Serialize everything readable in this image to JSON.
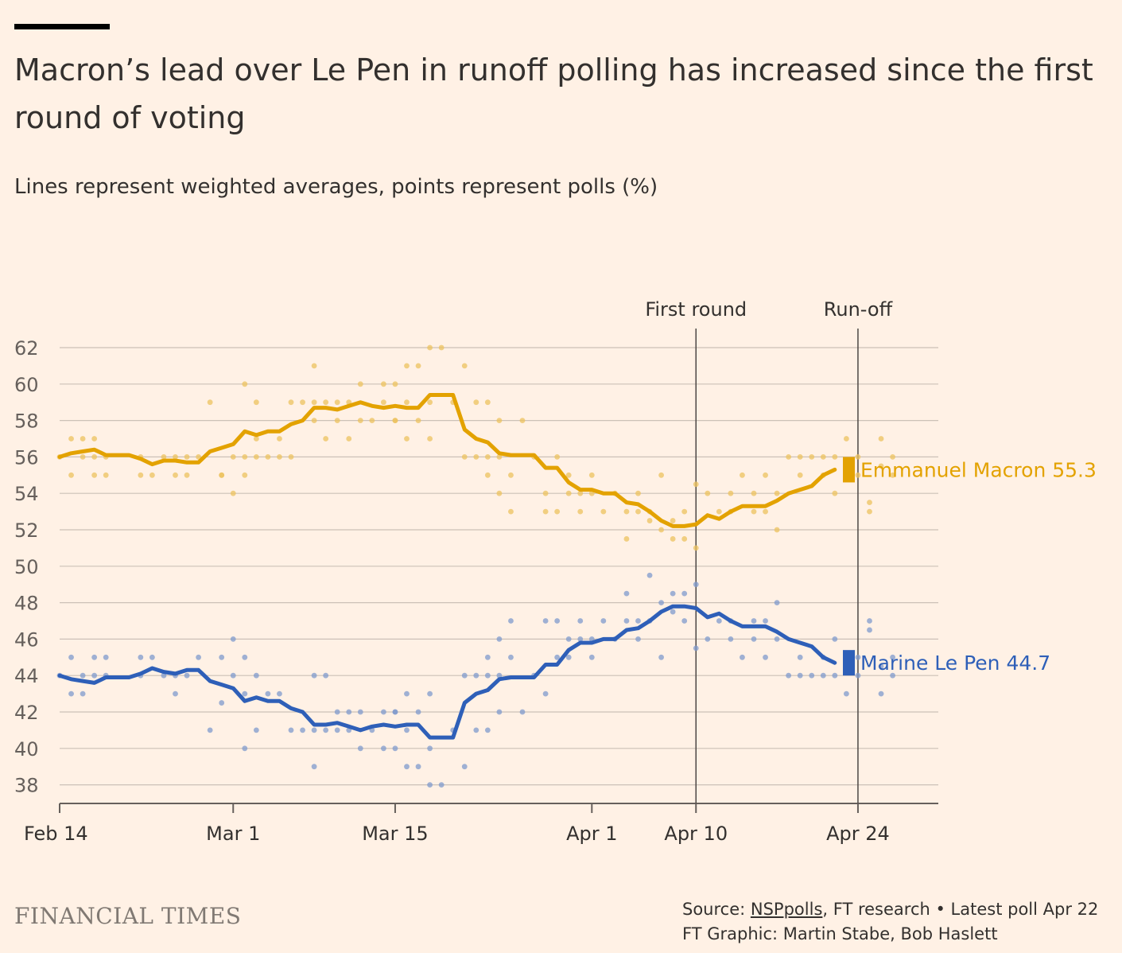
{
  "title": "Macron’s lead over Le Pen in runoff polling has increased since the first round of voting",
  "subtitle": "Lines represent weighted averages, points represent polls (%)",
  "footer": {
    "brand": "FINANCIAL TIMES",
    "source_prefix": "Source: ",
    "source_link": "NSPpolls",
    "source_suffix": ", FT research • Latest poll Apr 22",
    "credit": "FT Graphic: Martin Stabe, Bob Haslett"
  },
  "chart_data": {
    "type": "line",
    "xlabel": "",
    "ylabel": "",
    "x_unit": "days since Feb 14",
    "xlim": [
      0,
      73
    ],
    "ylim": [
      37,
      63
    ],
    "yticks": [
      38,
      40,
      42,
      44,
      46,
      48,
      50,
      52,
      54,
      56,
      58,
      60,
      62
    ],
    "xticks": [
      {
        "day": 0,
        "label": "Feb 14"
      },
      {
        "day": 15,
        "label": "Mar 1"
      },
      {
        "day": 29,
        "label": "Mar 15"
      },
      {
        "day": 46,
        "label": "Apr 1"
      },
      {
        "day": 55,
        "label": "Apr 10"
      },
      {
        "day": 69,
        "label": "Apr 24"
      }
    ],
    "annotations": [
      {
        "day": 55,
        "label": "First round"
      },
      {
        "day": 69,
        "label": "Run-off"
      }
    ],
    "series": [
      {
        "name": "Emmanuel Macron",
        "label": "Emmanuel Macron 55.3",
        "latest": 55.3,
        "color": "#e3a200",
        "x": [
          0,
          1,
          2,
          3,
          4,
          5,
          6,
          7,
          8,
          9,
          10,
          11,
          12,
          13,
          14,
          15,
          16,
          17,
          18,
          19,
          20,
          21,
          22,
          23,
          24,
          25,
          26,
          27,
          28,
          29,
          30,
          31,
          32,
          33,
          34,
          35,
          36,
          37,
          38,
          39,
          40,
          41,
          42,
          43,
          44,
          45,
          46,
          47,
          48,
          49,
          50,
          51,
          52,
          53,
          54,
          55,
          56,
          57,
          58,
          59,
          60,
          61,
          62,
          63,
          64,
          65,
          66,
          67
        ],
        "values": [
          56.0,
          56.2,
          56.3,
          56.4,
          56.1,
          56.1,
          56.1,
          55.9,
          55.6,
          55.8,
          55.8,
          55.7,
          55.7,
          56.3,
          56.5,
          56.7,
          57.4,
          57.2,
          57.4,
          57.4,
          57.8,
          58.0,
          58.7,
          58.7,
          58.6,
          58.8,
          59.0,
          58.8,
          58.7,
          58.8,
          58.7,
          58.7,
          59.4,
          59.4,
          59.4,
          57.5,
          57.0,
          56.8,
          56.2,
          56.1,
          56.1,
          56.1,
          55.4,
          55.4,
          54.6,
          54.2,
          54.2,
          54.0,
          54.0,
          53.5,
          53.4,
          53.0,
          52.5,
          52.2,
          52.2,
          52.3,
          52.8,
          52.6,
          53.0,
          53.3,
          53.3,
          53.3,
          53.6,
          54.0,
          54.2,
          54.4,
          55.0,
          55.3
        ]
      },
      {
        "name": "Marine Le Pen",
        "label": "Marine Le Pen 44.7",
        "latest": 44.7,
        "color": "#2e5fb8",
        "x": [
          0,
          1,
          2,
          3,
          4,
          5,
          6,
          7,
          8,
          9,
          10,
          11,
          12,
          13,
          14,
          15,
          16,
          17,
          18,
          19,
          20,
          21,
          22,
          23,
          24,
          25,
          26,
          27,
          28,
          29,
          30,
          31,
          32,
          33,
          34,
          35,
          36,
          37,
          38,
          39,
          40,
          41,
          42,
          43,
          44,
          45,
          46,
          47,
          48,
          49,
          50,
          51,
          52,
          53,
          54,
          55,
          56,
          57,
          58,
          59,
          60,
          61,
          62,
          63,
          64,
          65,
          66,
          67
        ],
        "values": [
          44.0,
          43.8,
          43.7,
          43.6,
          43.9,
          43.9,
          43.9,
          44.1,
          44.4,
          44.2,
          44.1,
          44.3,
          44.3,
          43.7,
          43.5,
          43.3,
          42.6,
          42.8,
          42.6,
          42.6,
          42.2,
          42.0,
          41.3,
          41.3,
          41.4,
          41.2,
          41.0,
          41.2,
          41.3,
          41.2,
          41.3,
          41.3,
          40.6,
          40.6,
          40.6,
          42.5,
          43.0,
          43.2,
          43.8,
          43.9,
          43.9,
          43.9,
          44.6,
          44.6,
          45.4,
          45.8,
          45.8,
          46.0,
          46.0,
          46.5,
          46.6,
          47.0,
          47.5,
          47.8,
          47.8,
          47.7,
          47.2,
          47.4,
          47.0,
          46.7,
          46.7,
          46.7,
          46.4,
          46.0,
          45.8,
          45.6,
          45.0,
          44.7
        ]
      }
    ],
    "polls": {
      "Emmanuel Macron": [
        [
          0,
          56
        ],
        [
          1,
          57
        ],
        [
          1,
          55
        ],
        [
          2,
          57
        ],
        [
          2,
          56
        ],
        [
          3,
          55
        ],
        [
          3,
          56
        ],
        [
          3,
          57
        ],
        [
          4,
          56
        ],
        [
          4,
          55
        ],
        [
          7,
          56
        ],
        [
          7,
          55
        ],
        [
          8,
          55
        ],
        [
          9,
          56
        ],
        [
          10,
          56
        ],
        [
          10,
          55
        ],
        [
          11,
          55
        ],
        [
          11,
          56
        ],
        [
          12,
          56
        ],
        [
          13,
          59
        ],
        [
          14,
          55
        ],
        [
          14,
          55
        ],
        [
          15,
          54
        ],
        [
          15,
          56
        ],
        [
          16,
          60
        ],
        [
          16,
          56
        ],
        [
          16,
          55
        ],
        [
          17,
          59
        ],
        [
          17,
          57
        ],
        [
          17,
          56
        ],
        [
          18,
          56
        ],
        [
          19,
          57
        ],
        [
          19,
          56
        ],
        [
          20,
          59
        ],
        [
          20,
          56
        ],
        [
          21,
          59
        ],
        [
          22,
          61
        ],
        [
          22,
          59
        ],
        [
          22,
          58
        ],
        [
          23,
          59
        ],
        [
          23,
          57
        ],
        [
          24,
          58
        ],
        [
          24,
          59
        ],
        [
          25,
          59
        ],
        [
          25,
          57
        ],
        [
          26,
          60
        ],
        [
          26,
          58
        ],
        [
          27,
          58
        ],
        [
          28,
          60
        ],
        [
          28,
          59
        ],
        [
          29,
          60
        ],
        [
          29,
          58
        ],
        [
          29,
          58
        ],
        [
          30,
          61
        ],
        [
          30,
          59
        ],
        [
          30,
          57
        ],
        [
          31,
          61
        ],
        [
          31,
          58
        ],
        [
          32,
          59
        ],
        [
          32,
          57
        ],
        [
          32,
          62
        ],
        [
          33,
          62
        ],
        [
          34,
          59
        ],
        [
          35,
          61
        ],
        [
          35,
          56
        ],
        [
          36,
          59
        ],
        [
          36,
          56
        ],
        [
          37,
          59
        ],
        [
          37,
          55
        ],
        [
          37,
          56
        ],
        [
          38,
          58
        ],
        [
          38,
          54
        ],
        [
          38,
          56
        ],
        [
          39,
          55
        ],
        [
          39,
          53
        ],
        [
          40,
          58
        ],
        [
          41,
          56
        ],
        [
          42,
          53
        ],
        [
          42,
          54
        ],
        [
          43,
          56
        ],
        [
          43,
          53
        ],
        [
          44,
          55
        ],
        [
          44,
          54
        ],
        [
          45,
          54
        ],
        [
          45,
          53
        ],
        [
          46,
          55
        ],
        [
          46,
          54
        ],
        [
          47,
          53
        ],
        [
          48,
          54
        ],
        [
          49,
          53
        ],
        [
          49,
          51.5
        ],
        [
          50,
          54
        ],
        [
          50,
          53
        ],
        [
          51,
          52.5
        ],
        [
          51,
          53
        ],
        [
          52,
          55
        ],
        [
          52,
          52
        ],
        [
          53,
          51.5
        ],
        [
          53,
          52.5
        ],
        [
          54,
          53
        ],
        [
          54,
          51.5
        ],
        [
          55,
          54.5
        ],
        [
          55,
          51
        ],
        [
          56,
          54
        ],
        [
          57,
          53
        ],
        [
          58,
          54
        ],
        [
          58,
          53
        ],
        [
          59,
          55
        ],
        [
          60,
          54
        ],
        [
          60,
          53
        ],
        [
          61,
          55
        ],
        [
          61,
          53
        ],
        [
          62,
          52
        ],
        [
          62,
          54
        ],
        [
          63,
          56
        ],
        [
          64,
          56
        ],
        [
          64,
          55
        ],
        [
          65,
          56
        ],
        [
          66,
          56
        ],
        [
          66,
          55
        ],
        [
          67,
          54
        ],
        [
          67,
          56
        ],
        [
          68,
          55
        ],
        [
          68,
          57
        ],
        [
          69,
          56
        ],
        [
          69,
          55
        ],
        [
          70,
          53.5
        ],
        [
          70,
          53
        ],
        [
          71,
          57
        ],
        [
          71,
          55.5
        ],
        [
          72,
          55
        ],
        [
          72,
          56
        ]
      ],
      "Marine Le Pen": [
        [
          0,
          44
        ],
        [
          1,
          45
        ],
        [
          1,
          43
        ],
        [
          2,
          44
        ],
        [
          2,
          43
        ],
        [
          3,
          44
        ],
        [
          3,
          45
        ],
        [
          4,
          44
        ],
        [
          4,
          45
        ],
        [
          7,
          45
        ],
        [
          7,
          44
        ],
        [
          8,
          45
        ],
        [
          9,
          44
        ],
        [
          10,
          44
        ],
        [
          10,
          43
        ],
        [
          11,
          44
        ],
        [
          12,
          45
        ],
        [
          13,
          41
        ],
        [
          14,
          45
        ],
        [
          14,
          42.5
        ],
        [
          15,
          46
        ],
        [
          15,
          44
        ],
        [
          16,
          40
        ],
        [
          16,
          43
        ],
        [
          16,
          45
        ],
        [
          17,
          44
        ],
        [
          17,
          41
        ],
        [
          18,
          43
        ],
        [
          19,
          43
        ],
        [
          20,
          41
        ],
        [
          21,
          41
        ],
        [
          22,
          39
        ],
        [
          22,
          41
        ],
        [
          22,
          44
        ],
        [
          23,
          44
        ],
        [
          23,
          41
        ],
        [
          24,
          42
        ],
        [
          24,
          41
        ],
        [
          25,
          42
        ],
        [
          25,
          41
        ],
        [
          26,
          40
        ],
        [
          26,
          42
        ],
        [
          27,
          41
        ],
        [
          28,
          40
        ],
        [
          28,
          42
        ],
        [
          29,
          40
        ],
        [
          29,
          42
        ],
        [
          29,
          42
        ],
        [
          30,
          39
        ],
        [
          30,
          41
        ],
        [
          30,
          43
        ],
        [
          31,
          39
        ],
        [
          31,
          42
        ],
        [
          32,
          40
        ],
        [
          32,
          43
        ],
        [
          32,
          38
        ],
        [
          33,
          38
        ],
        [
          34,
          41
        ],
        [
          35,
          39
        ],
        [
          35,
          44
        ],
        [
          36,
          41
        ],
        [
          36,
          44
        ],
        [
          37,
          41
        ],
        [
          37,
          45
        ],
        [
          37,
          44
        ],
        [
          38,
          42
        ],
        [
          38,
          46
        ],
        [
          38,
          44
        ],
        [
          39,
          45
        ],
        [
          39,
          47
        ],
        [
          40,
          42
        ],
        [
          41,
          44
        ],
        [
          42,
          47
        ],
        [
          42,
          43
        ],
        [
          43,
          45
        ],
        [
          43,
          47
        ],
        [
          44,
          46
        ],
        [
          44,
          45
        ],
        [
          45,
          46
        ],
        [
          45,
          47
        ],
        [
          46,
          45
        ],
        [
          46,
          46
        ],
        [
          47,
          47
        ],
        [
          48,
          46
        ],
        [
          49,
          47
        ],
        [
          49,
          48.5
        ],
        [
          50,
          46
        ],
        [
          50,
          47
        ],
        [
          51,
          49.5
        ],
        [
          51,
          47
        ],
        [
          52,
          45
        ],
        [
          52,
          48
        ],
        [
          53,
          48.5
        ],
        [
          53,
          47.5
        ],
        [
          54,
          47
        ],
        [
          54,
          48.5
        ],
        [
          55,
          45.5
        ],
        [
          55,
          49
        ],
        [
          56,
          46
        ],
        [
          57,
          47
        ],
        [
          58,
          46
        ],
        [
          58,
          47
        ],
        [
          59,
          45
        ],
        [
          60,
          46
        ],
        [
          60,
          47
        ],
        [
          61,
          45
        ],
        [
          61,
          47
        ],
        [
          62,
          48
        ],
        [
          62,
          46
        ],
        [
          63,
          44
        ],
        [
          64,
          44
        ],
        [
          64,
          45
        ],
        [
          65,
          44
        ],
        [
          66,
          44
        ],
        [
          66,
          45
        ],
        [
          67,
          46
        ],
        [
          67,
          44
        ],
        [
          68,
          45
        ],
        [
          68,
          43
        ],
        [
          69,
          44
        ],
        [
          69,
          45
        ],
        [
          70,
          46.5
        ],
        [
          70,
          47
        ],
        [
          71,
          43
        ],
        [
          71,
          44.5
        ],
        [
          72,
          45
        ],
        [
          72,
          44
        ]
      ]
    }
  }
}
